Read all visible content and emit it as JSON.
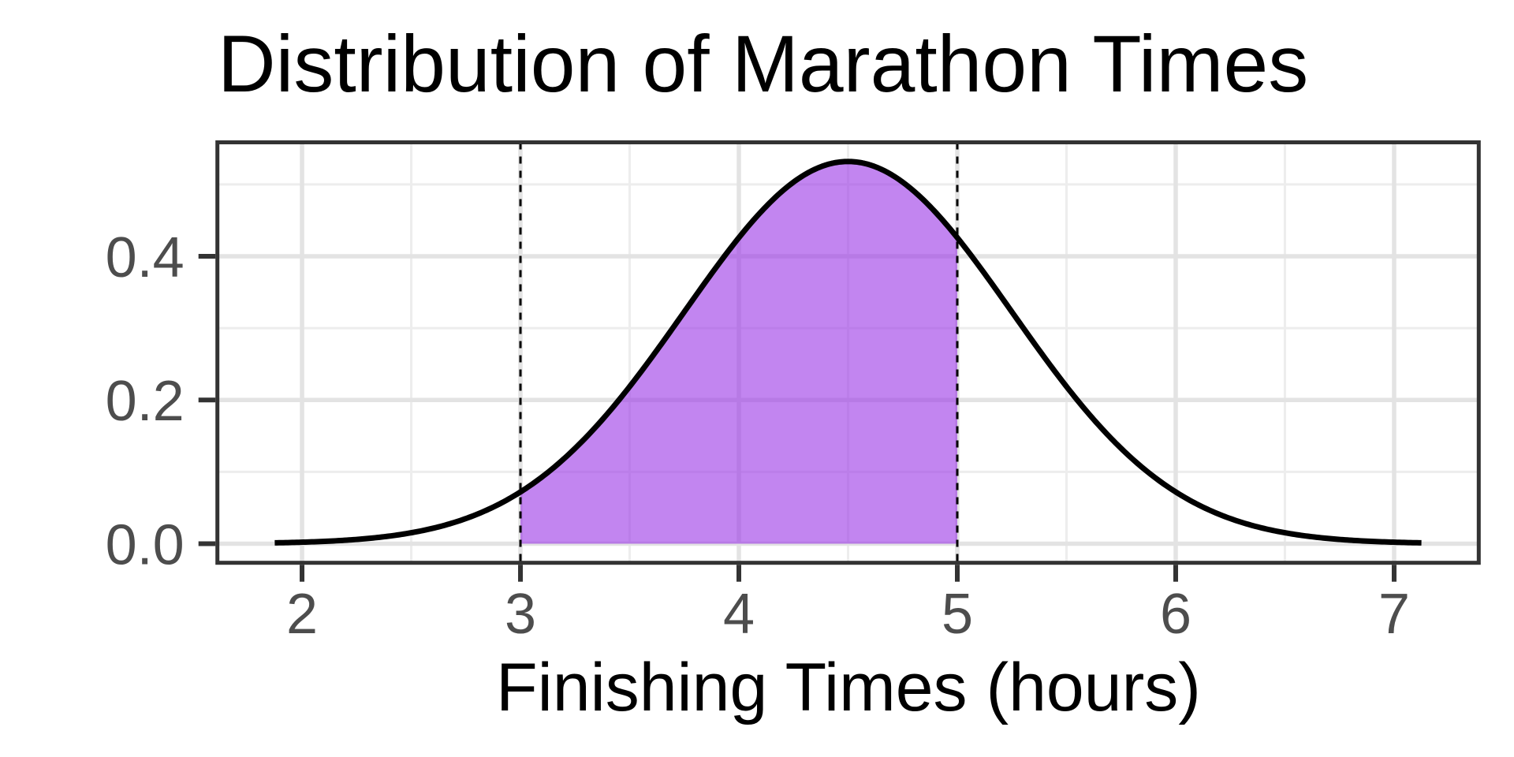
{
  "chart_data": {
    "type": "area",
    "title": "Distribution of Marathon Times",
    "xlabel": "Finishing Times (hours)",
    "ylabel": "",
    "distribution": {
      "kind": "normal",
      "mean": 4.5,
      "sd": 0.75,
      "peak_density": 0.5319
    },
    "curve_x_range": [
      1.875,
      7.125
    ],
    "shaded_interval": [
      3,
      5
    ],
    "vlines": [
      3,
      5
    ],
    "x_ticks": [
      2,
      3,
      4,
      5,
      6,
      7
    ],
    "x_tick_labels": [
      "2",
      "3",
      "4",
      "5",
      "6",
      "7"
    ],
    "y_ticks": [
      0.0,
      0.2,
      0.4
    ],
    "y_tick_labels": [
      "0.0",
      "0.2",
      "0.4"
    ],
    "x_minor_ticks": [
      2.5,
      3.5,
      4.5,
      5.5,
      6.5
    ],
    "y_minor_ticks": [
      0.1,
      0.3,
      0.5
    ],
    "xlim": [
      1.6125,
      7.3875
    ],
    "ylim": [
      -0.0266,
      0.5586
    ],
    "grid": "on",
    "legend": "none",
    "curve_points": {
      "x": [
        1.875,
        2,
        2.25,
        2.5,
        2.75,
        3,
        3.25,
        3.5,
        3.75,
        4,
        4.25,
        4.5,
        4.75,
        5,
        5.25,
        5.5,
        5.75,
        6,
        6.25,
        6.5,
        6.75,
        7,
        7.125
      ],
      "y": [
        0.0012,
        0.0021,
        0.0059,
        0.0152,
        0.035,
        0.072,
        0.1326,
        0.2187,
        0.3226,
        0.4259,
        0.5032,
        0.5319,
        0.5032,
        0.4259,
        0.3226,
        0.2187,
        0.1326,
        0.072,
        0.035,
        0.0152,
        0.0059,
        0.0021,
        0.0012
      ]
    },
    "colors": {
      "fill": "#9933E6",
      "fill_opacity": 0.6,
      "curve": "#000000",
      "vline": "#000000",
      "grid_major": "#E3E3E3",
      "grid_minor": "#EDEDED",
      "panel_border": "#333333",
      "tick_mark": "#333333",
      "tick_text": "#4D4D4D",
      "title_text": "#000000",
      "background": "#FFFFFF"
    }
  }
}
